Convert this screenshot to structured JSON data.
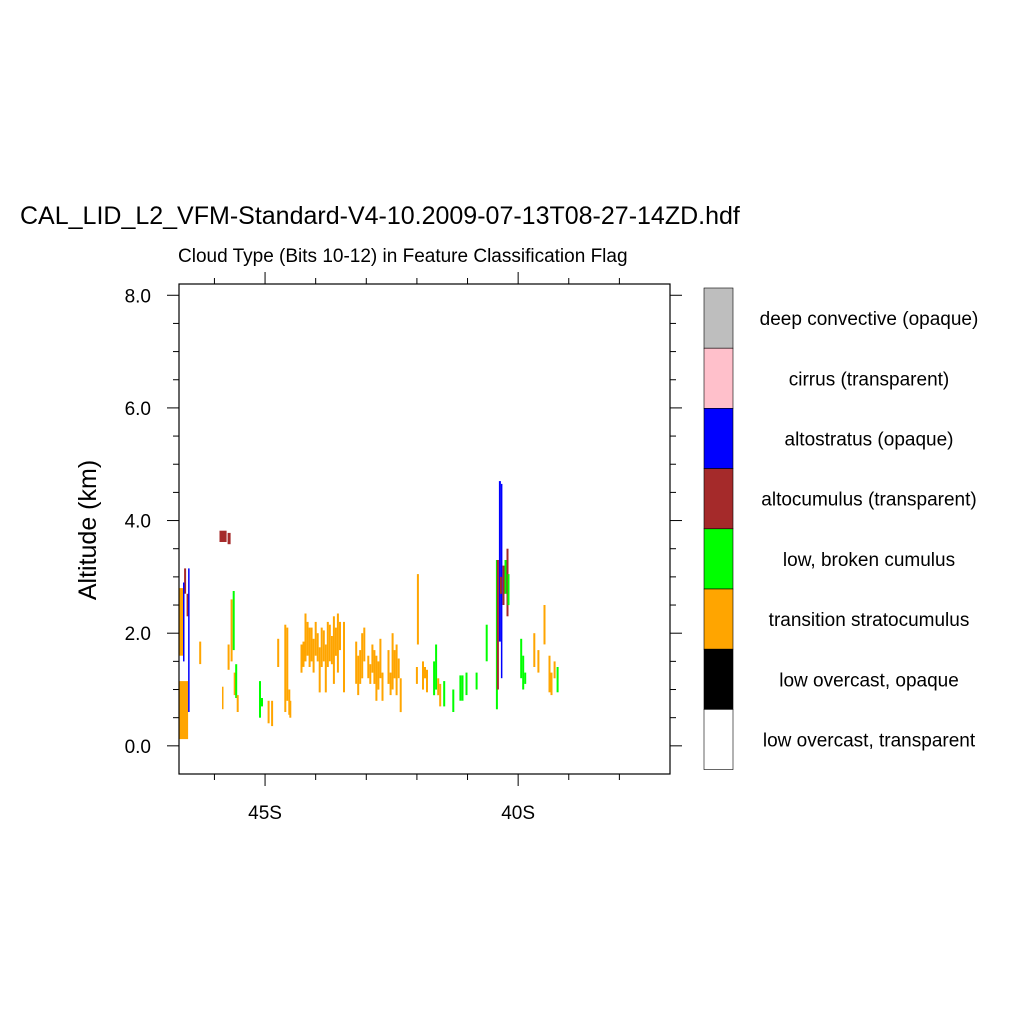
{
  "chart_data": {
    "type": "curtain",
    "title": "CAL_LID_L2_VFM-Standard-V4-10.2009-07-13T08-27-14ZD.hdf",
    "subtitle": "Cloud Type (Bits 10-12) in Feature Classification Flag",
    "ylabel": "Altitude (km)",
    "xlabel": "",
    "xlim": [
      -46.7,
      -37.0
    ],
    "ylim": [
      -0.5,
      8.2
    ],
    "grid": false,
    "legend_position": "right",
    "y_ticks": [
      {
        "value": 0.0,
        "label": "0.0"
      },
      {
        "value": 2.0,
        "label": "2.0"
      },
      {
        "value": 4.0,
        "label": "4.0"
      },
      {
        "value": 6.0,
        "label": "6.0"
      },
      {
        "value": 8.0,
        "label": "8.0"
      }
    ],
    "x_ticks": [
      {
        "value": -45,
        "label": "45S"
      },
      {
        "value": -40,
        "label": "40S"
      }
    ],
    "legend": [
      {
        "key": "deep_convective",
        "label": "deep convective (opaque)",
        "color": "#bebebe"
      },
      {
        "key": "cirrus",
        "label": "cirrus (transparent)",
        "color": "#ffc0cb"
      },
      {
        "key": "altostratus",
        "label": "altostratus (opaque)",
        "color": "#0000ff"
      },
      {
        "key": "altocumulus",
        "label": "altocumulus (transparent)",
        "color": "#a52a2a"
      },
      {
        "key": "broken_cumulus",
        "label": "low, broken cumulus",
        "color": "#00ff00"
      },
      {
        "key": "transition_sc",
        "label": "transition stratocumulus",
        "color": "#ffa500"
      },
      {
        "key": "overcast_opaque",
        "label": "low overcast, opaque",
        "color": "#000000"
      },
      {
        "key": "overcast_transparent",
        "label": "low overcast, transparent",
        "color": "#ffffff"
      }
    ],
    "features": [
      {
        "lat": -46.7,
        "lat2": -46.52,
        "y0": 0.12,
        "y1": 1.15,
        "cls": "transition_sc"
      },
      {
        "lat": -46.7,
        "lat2": -46.6,
        "y0": 1.6,
        "y1": 2.8,
        "cls": "transition_sc"
      },
      {
        "lat": -46.6,
        "lat2": -46.56,
        "y0": 2.7,
        "y1": 3.15,
        "cls": "altocumulus"
      },
      {
        "lat": -46.62,
        "lat2": -46.59,
        "y0": 1.5,
        "y1": 2.9,
        "cls": "altostratus"
      },
      {
        "lat": -46.55,
        "lat2": -46.5,
        "y0": 2.3,
        "y1": 2.7,
        "cls": "altocumulus"
      },
      {
        "lat": -46.52,
        "lat2": -46.49,
        "y0": 0.6,
        "y1": 3.15,
        "cls": "altostratus"
      },
      {
        "lat": -46.3,
        "lat2": -46.26,
        "y0": 1.45,
        "y1": 1.85,
        "cls": "transition_sc"
      },
      {
        "lat": -45.9,
        "lat2": -45.76,
        "y0": 3.62,
        "y1": 3.82,
        "cls": "altocumulus"
      },
      {
        "lat": -45.74,
        "lat2": -45.68,
        "y0": 3.58,
        "y1": 3.78,
        "cls": "altocumulus"
      },
      {
        "lat": -45.85,
        "lat2": -45.82,
        "y0": 0.65,
        "y1": 1.05,
        "cls": "transition_sc"
      },
      {
        "lat": -45.74,
        "lat2": -45.7,
        "y0": 1.35,
        "y1": 1.8,
        "cls": "transition_sc"
      },
      {
        "lat": -45.68,
        "lat2": -45.64,
        "y0": 1.5,
        "y1": 2.6,
        "cls": "transition_sc"
      },
      {
        "lat": -45.64,
        "lat2": -45.6,
        "y0": 1.7,
        "y1": 2.75,
        "cls": "broken_cumulus"
      },
      {
        "lat": -45.62,
        "lat2": -45.58,
        "y0": 0.9,
        "y1": 1.3,
        "cls": "transition_sc"
      },
      {
        "lat": -45.59,
        "lat2": -45.55,
        "y0": 0.85,
        "y1": 1.45,
        "cls": "broken_cumulus"
      },
      {
        "lat": -45.56,
        "lat2": -45.52,
        "y0": 0.6,
        "y1": 0.9,
        "cls": "transition_sc"
      },
      {
        "lat": -45.12,
        "lat2": -45.08,
        "y0": 0.5,
        "y1": 1.15,
        "cls": "broken_cumulus"
      },
      {
        "lat": -45.1,
        "lat2": -45.04,
        "y0": 0.7,
        "y1": 0.85,
        "cls": "broken_cumulus"
      },
      {
        "lat": -44.95,
        "lat2": -44.91,
        "y0": 0.4,
        "y1": 0.8,
        "cls": "transition_sc"
      },
      {
        "lat": -44.88,
        "lat2": -44.84,
        "y0": 0.35,
        "y1": 0.8,
        "cls": "transition_sc"
      },
      {
        "lat": -44.76,
        "lat2": -44.72,
        "y0": 1.4,
        "y1": 1.9,
        "cls": "transition_sc"
      },
      {
        "lat": -44.62,
        "lat2": -44.58,
        "y0": 0.6,
        "y1": 2.15,
        "cls": "transition_sc"
      },
      {
        "lat": -44.58,
        "lat2": -44.54,
        "y0": 0.8,
        "y1": 2.1,
        "cls": "transition_sc"
      },
      {
        "lat": -44.54,
        "lat2": -44.5,
        "y0": 0.55,
        "y1": 1.0,
        "cls": "transition_sc"
      },
      {
        "lat": -44.52,
        "lat2": -44.48,
        "y0": 0.5,
        "y1": 0.8,
        "cls": "transition_sc"
      },
      {
        "lat": -44.3,
        "lat2": -44.26,
        "y0": 1.3,
        "y1": 1.8,
        "cls": "transition_sc"
      },
      {
        "lat": -44.26,
        "lat2": -44.22,
        "y0": 1.4,
        "y1": 1.85,
        "cls": "transition_sc"
      },
      {
        "lat": -44.22,
        "lat2": -44.18,
        "y0": 1.5,
        "y1": 2.35,
        "cls": "transition_sc"
      },
      {
        "lat": -44.18,
        "lat2": -44.14,
        "y0": 1.6,
        "y1": 2.2,
        "cls": "transition_sc"
      },
      {
        "lat": -44.14,
        "lat2": -44.1,
        "y0": 1.4,
        "y1": 2.1,
        "cls": "transition_sc"
      },
      {
        "lat": -44.1,
        "lat2": -44.06,
        "y0": 1.5,
        "y1": 2.1,
        "cls": "transition_sc"
      },
      {
        "lat": -44.06,
        "lat2": -44.02,
        "y0": 1.3,
        "y1": 1.9,
        "cls": "transition_sc"
      },
      {
        "lat": -44.02,
        "lat2": -43.98,
        "y0": 1.6,
        "y1": 2.2,
        "cls": "transition_sc"
      },
      {
        "lat": -43.98,
        "lat2": -43.94,
        "y0": 1.5,
        "y1": 2.0,
        "cls": "transition_sc"
      },
      {
        "lat": -43.94,
        "lat2": -43.9,
        "y0": 0.95,
        "y1": 1.75,
        "cls": "transition_sc"
      },
      {
        "lat": -43.9,
        "lat2": -43.86,
        "y0": 1.4,
        "y1": 2.1,
        "cls": "transition_sc"
      },
      {
        "lat": -43.86,
        "lat2": -43.82,
        "y0": 1.5,
        "y1": 2.05,
        "cls": "transition_sc"
      },
      {
        "lat": -43.82,
        "lat2": -43.78,
        "y0": 0.95,
        "y1": 1.8,
        "cls": "transition_sc"
      },
      {
        "lat": -43.78,
        "lat2": -43.74,
        "y0": 1.4,
        "y1": 2.2,
        "cls": "transition_sc"
      },
      {
        "lat": -43.74,
        "lat2": -43.7,
        "y0": 1.5,
        "y1": 2.15,
        "cls": "transition_sc"
      },
      {
        "lat": -43.7,
        "lat2": -43.66,
        "y0": 1.45,
        "y1": 1.95,
        "cls": "transition_sc"
      },
      {
        "lat": -43.66,
        "lat2": -43.62,
        "y0": 1.1,
        "y1": 2.3,
        "cls": "transition_sc"
      },
      {
        "lat": -43.62,
        "lat2": -43.58,
        "y0": 1.6,
        "y1": 2.1,
        "cls": "transition_sc"
      },
      {
        "lat": -43.58,
        "lat2": -43.54,
        "y0": 1.3,
        "y1": 2.35,
        "cls": "transition_sc"
      },
      {
        "lat": -43.54,
        "lat2": -43.5,
        "y0": 1.7,
        "y1": 2.2,
        "cls": "transition_sc"
      },
      {
        "lat": -43.46,
        "lat2": -43.42,
        "y0": 0.95,
        "y1": 2.2,
        "cls": "transition_sc"
      },
      {
        "lat": -43.22,
        "lat2": -43.18,
        "y0": 1.1,
        "y1": 1.85,
        "cls": "transition_sc"
      },
      {
        "lat": -43.18,
        "lat2": -43.14,
        "y0": 0.9,
        "y1": 1.6,
        "cls": "transition_sc"
      },
      {
        "lat": -43.14,
        "lat2": -43.1,
        "y0": 1.1,
        "y1": 1.7,
        "cls": "transition_sc"
      },
      {
        "lat": -43.1,
        "lat2": -43.06,
        "y0": 1.2,
        "y1": 2.0,
        "cls": "transition_sc"
      },
      {
        "lat": -43.06,
        "lat2": -43.02,
        "y0": 1.5,
        "y1": 2.1,
        "cls": "transition_sc"
      },
      {
        "lat": -42.98,
        "lat2": -42.94,
        "y0": 1.2,
        "y1": 1.6,
        "cls": "transition_sc"
      },
      {
        "lat": -42.94,
        "lat2": -42.9,
        "y0": 1.1,
        "y1": 1.45,
        "cls": "transition_sc"
      },
      {
        "lat": -42.9,
        "lat2": -42.86,
        "y0": 1.3,
        "y1": 1.8,
        "cls": "transition_sc"
      },
      {
        "lat": -42.86,
        "lat2": -42.82,
        "y0": 1.1,
        "y1": 1.7,
        "cls": "transition_sc"
      },
      {
        "lat": -42.82,
        "lat2": -42.78,
        "y0": 0.8,
        "y1": 1.6,
        "cls": "transition_sc"
      },
      {
        "lat": -42.78,
        "lat2": -42.74,
        "y0": 1.0,
        "y1": 1.5,
        "cls": "transition_sc"
      },
      {
        "lat": -42.74,
        "lat2": -42.7,
        "y0": 1.2,
        "y1": 1.9,
        "cls": "transition_sc"
      },
      {
        "lat": -42.7,
        "lat2": -42.66,
        "y0": 0.8,
        "y1": 1.3,
        "cls": "transition_sc"
      },
      {
        "lat": -42.58,
        "lat2": -42.54,
        "y0": 1.1,
        "y1": 1.7,
        "cls": "transition_sc"
      },
      {
        "lat": -42.54,
        "lat2": -42.5,
        "y0": 0.9,
        "y1": 1.3,
        "cls": "transition_sc"
      },
      {
        "lat": -42.5,
        "lat2": -42.46,
        "y0": 1.0,
        "y1": 2.0,
        "cls": "transition_sc"
      },
      {
        "lat": -42.46,
        "lat2": -42.42,
        "y0": 1.2,
        "y1": 1.7,
        "cls": "transition_sc"
      },
      {
        "lat": -42.42,
        "lat2": -42.38,
        "y0": 0.9,
        "y1": 1.8,
        "cls": "transition_sc"
      },
      {
        "lat": -42.38,
        "lat2": -42.34,
        "y0": 1.2,
        "y1": 1.55,
        "cls": "transition_sc"
      },
      {
        "lat": -42.34,
        "lat2": -42.3,
        "y0": 0.6,
        "y1": 1.2,
        "cls": "transition_sc"
      },
      {
        "lat": -42.0,
        "lat2": -41.96,
        "y0": 1.8,
        "y1": 3.05,
        "cls": "transition_sc"
      },
      {
        "lat": -42.02,
        "lat2": -41.98,
        "y0": 1.1,
        "y1": 1.4,
        "cls": "transition_sc"
      },
      {
        "lat": -41.9,
        "lat2": -41.86,
        "y0": 1.0,
        "y1": 1.5,
        "cls": "transition_sc"
      },
      {
        "lat": -41.86,
        "lat2": -41.82,
        "y0": 1.2,
        "y1": 1.4,
        "cls": "transition_sc"
      },
      {
        "lat": -41.82,
        "lat2": -41.78,
        "y0": 0.95,
        "y1": 1.35,
        "cls": "transition_sc"
      },
      {
        "lat": -41.68,
        "lat2": -41.64,
        "y0": 0.9,
        "y1": 1.5,
        "cls": "broken_cumulus"
      },
      {
        "lat": -41.64,
        "lat2": -41.6,
        "y0": 1.0,
        "y1": 1.8,
        "cls": "broken_cumulus"
      },
      {
        "lat": -41.6,
        "lat2": -41.56,
        "y0": 0.9,
        "y1": 1.2,
        "cls": "transition_sc"
      },
      {
        "lat": -41.56,
        "lat2": -41.52,
        "y0": 0.7,
        "y1": 1.1,
        "cls": "transition_sc"
      },
      {
        "lat": -41.48,
        "lat2": -41.44,
        "y0": 0.7,
        "y1": 1.15,
        "cls": "broken_cumulus"
      },
      {
        "lat": -41.3,
        "lat2": -41.26,
        "y0": 0.6,
        "y1": 1.0,
        "cls": "broken_cumulus"
      },
      {
        "lat": -41.16,
        "lat2": -41.12,
        "y0": 0.8,
        "y1": 1.25,
        "cls": "broken_cumulus"
      },
      {
        "lat": -41.12,
        "lat2": -41.08,
        "y0": 0.8,
        "y1": 1.25,
        "cls": "broken_cumulus"
      },
      {
        "lat": -41.04,
        "lat2": -41.0,
        "y0": 0.9,
        "y1": 1.3,
        "cls": "broken_cumulus"
      },
      {
        "lat": -40.84,
        "lat2": -40.8,
        "y0": 1.0,
        "y1": 1.3,
        "cls": "broken_cumulus"
      },
      {
        "lat": -40.64,
        "lat2": -40.6,
        "y0": 1.5,
        "y1": 2.15,
        "cls": "broken_cumulus"
      },
      {
        "lat": -40.44,
        "lat2": -40.4,
        "y0": 0.65,
        "y1": 3.3,
        "cls": "broken_cumulus"
      },
      {
        "lat": -40.42,
        "lat2": -40.38,
        "y0": 1.0,
        "y1": 3.3,
        "cls": "altocumulus"
      },
      {
        "lat": -40.38,
        "lat2": -40.34,
        "y0": 1.85,
        "y1": 4.7,
        "cls": "altostratus"
      },
      {
        "lat": -40.34,
        "lat2": -40.31,
        "y0": 1.2,
        "y1": 4.65,
        "cls": "altostratus"
      },
      {
        "lat": -40.36,
        "lat2": -40.32,
        "y0": 2.7,
        "y1": 3.0,
        "cls": "altocumulus"
      },
      {
        "lat": -40.31,
        "lat2": -40.27,
        "y0": 2.5,
        "y1": 3.2,
        "cls": "altocumulus"
      },
      {
        "lat": -40.27,
        "lat2": -40.23,
        "y0": 2.7,
        "y1": 3.3,
        "cls": "broken_cumulus"
      },
      {
        "lat": -40.23,
        "lat2": -40.19,
        "y0": 2.3,
        "y1": 3.5,
        "cls": "altocumulus"
      },
      {
        "lat": -40.21,
        "lat2": -40.17,
        "y0": 2.5,
        "y1": 3.05,
        "cls": "broken_cumulus"
      },
      {
        "lat": -39.96,
        "lat2": -39.92,
        "y0": 1.2,
        "y1": 1.9,
        "cls": "broken_cumulus"
      },
      {
        "lat": -39.92,
        "lat2": -39.88,
        "y0": 1.0,
        "y1": 1.6,
        "cls": "broken_cumulus"
      },
      {
        "lat": -39.88,
        "lat2": -39.84,
        "y0": 1.1,
        "y1": 1.3,
        "cls": "broken_cumulus"
      },
      {
        "lat": -39.7,
        "lat2": -39.66,
        "y0": 1.4,
        "y1": 2.0,
        "cls": "transition_sc"
      },
      {
        "lat": -39.62,
        "lat2": -39.58,
        "y0": 1.3,
        "y1": 1.7,
        "cls": "transition_sc"
      },
      {
        "lat": -39.5,
        "lat2": -39.46,
        "y0": 1.8,
        "y1": 2.5,
        "cls": "transition_sc"
      },
      {
        "lat": -39.4,
        "lat2": -39.36,
        "y0": 0.95,
        "y1": 1.6,
        "cls": "transition_sc"
      },
      {
        "lat": -39.36,
        "lat2": -39.32,
        "y0": 0.9,
        "y1": 1.3,
        "cls": "transition_sc"
      },
      {
        "lat": -39.3,
        "lat2": -39.26,
        "y0": 1.2,
        "y1": 1.5,
        "cls": "transition_sc"
      },
      {
        "lat": -39.24,
        "lat2": -39.2,
        "y0": 0.95,
        "y1": 1.4,
        "cls": "broken_cumulus"
      }
    ]
  }
}
